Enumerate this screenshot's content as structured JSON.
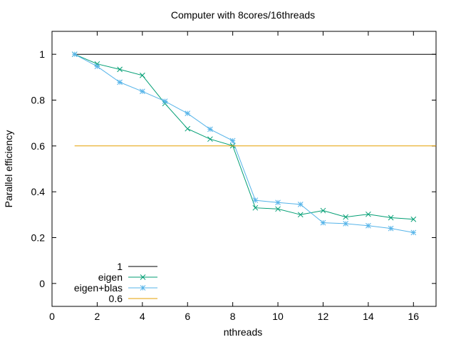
{
  "chart_data": {
    "type": "line",
    "title": "Computer with 8cores/16threads",
    "xlabel": "nthreads",
    "ylabel": "Parallel efficiency",
    "xlim": [
      0,
      17
    ],
    "ylim": [
      -0.1,
      1.1
    ],
    "xticks": [
      0,
      2,
      4,
      6,
      8,
      10,
      12,
      14,
      16
    ],
    "yticks": [
      0,
      0.2,
      0.4,
      0.6,
      0.8,
      1
    ],
    "grid": false,
    "legend_position": "bottom-left",
    "series": [
      {
        "name": "1",
        "color": "#000000",
        "marker": "none",
        "x": [
          1,
          17
        ],
        "y": [
          1,
          1
        ]
      },
      {
        "name": "eigen",
        "color": "#009e73",
        "marker": "x",
        "x": [
          1,
          2,
          3,
          4,
          5,
          6,
          7,
          8,
          9,
          10,
          11,
          12,
          13,
          14,
          15,
          16
        ],
        "y": [
          1.0,
          0.958,
          0.934,
          0.908,
          0.785,
          0.675,
          0.63,
          0.601,
          0.33,
          0.325,
          0.3,
          0.318,
          0.29,
          0.302,
          0.287,
          0.28
        ]
      },
      {
        "name": "eigen+blas",
        "color": "#56b4e9",
        "marker": "asterisk",
        "x": [
          1,
          2,
          3,
          4,
          5,
          6,
          7,
          8,
          9,
          10,
          11,
          12,
          13,
          14,
          15,
          16
        ],
        "y": [
          1.0,
          0.947,
          0.878,
          0.838,
          0.795,
          0.742,
          0.673,
          0.623,
          0.363,
          0.353,
          0.345,
          0.265,
          0.261,
          0.252,
          0.24,
          0.222
        ]
      },
      {
        "name": "0.6",
        "color": "#e69f00",
        "marker": "none",
        "x": [
          1,
          17
        ],
        "y": [
          0.6,
          0.6
        ]
      }
    ]
  }
}
